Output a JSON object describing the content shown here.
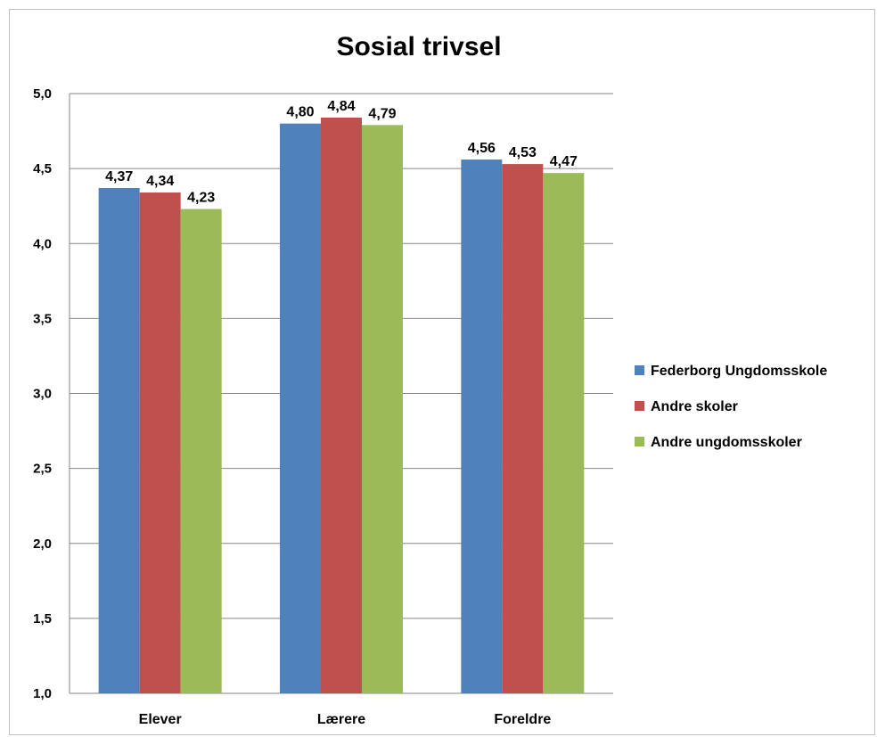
{
  "chart_data": {
    "type": "bar",
    "title": "Sosial trivsel",
    "xlabel": "",
    "ylabel": "",
    "categories": [
      "Elever",
      "Lærere",
      "Foreldre"
    ],
    "series": [
      {
        "name": "Federborg Ungdomsskole",
        "color": "#4f81bd",
        "values": [
          4.37,
          4.8,
          4.56
        ],
        "labels": [
          "4,37",
          "4,80",
          "4,56"
        ]
      },
      {
        "name": "Andre skoler",
        "color": "#c0504d",
        "values": [
          4.34,
          4.84,
          4.53
        ],
        "labels": [
          "4,34",
          "4,84",
          "4,53"
        ]
      },
      {
        "name": "Andre ungdomsskoler",
        "color": "#9bbb59",
        "values": [
          4.23,
          4.79,
          4.47
        ],
        "labels": [
          "4,23",
          "4,79",
          "4,47"
        ]
      }
    ],
    "ylim": [
      1.0,
      5.0
    ],
    "yticks": [
      1.0,
      1.5,
      2.0,
      2.5,
      3.0,
      3.5,
      4.0,
      4.5,
      5.0
    ],
    "ytick_labels": [
      "1,0",
      "1,5",
      "2,0",
      "2,5",
      "3,0",
      "3,5",
      "4,0",
      "4,5",
      "5,0"
    ],
    "grid": true,
    "legend_position": "right"
  }
}
